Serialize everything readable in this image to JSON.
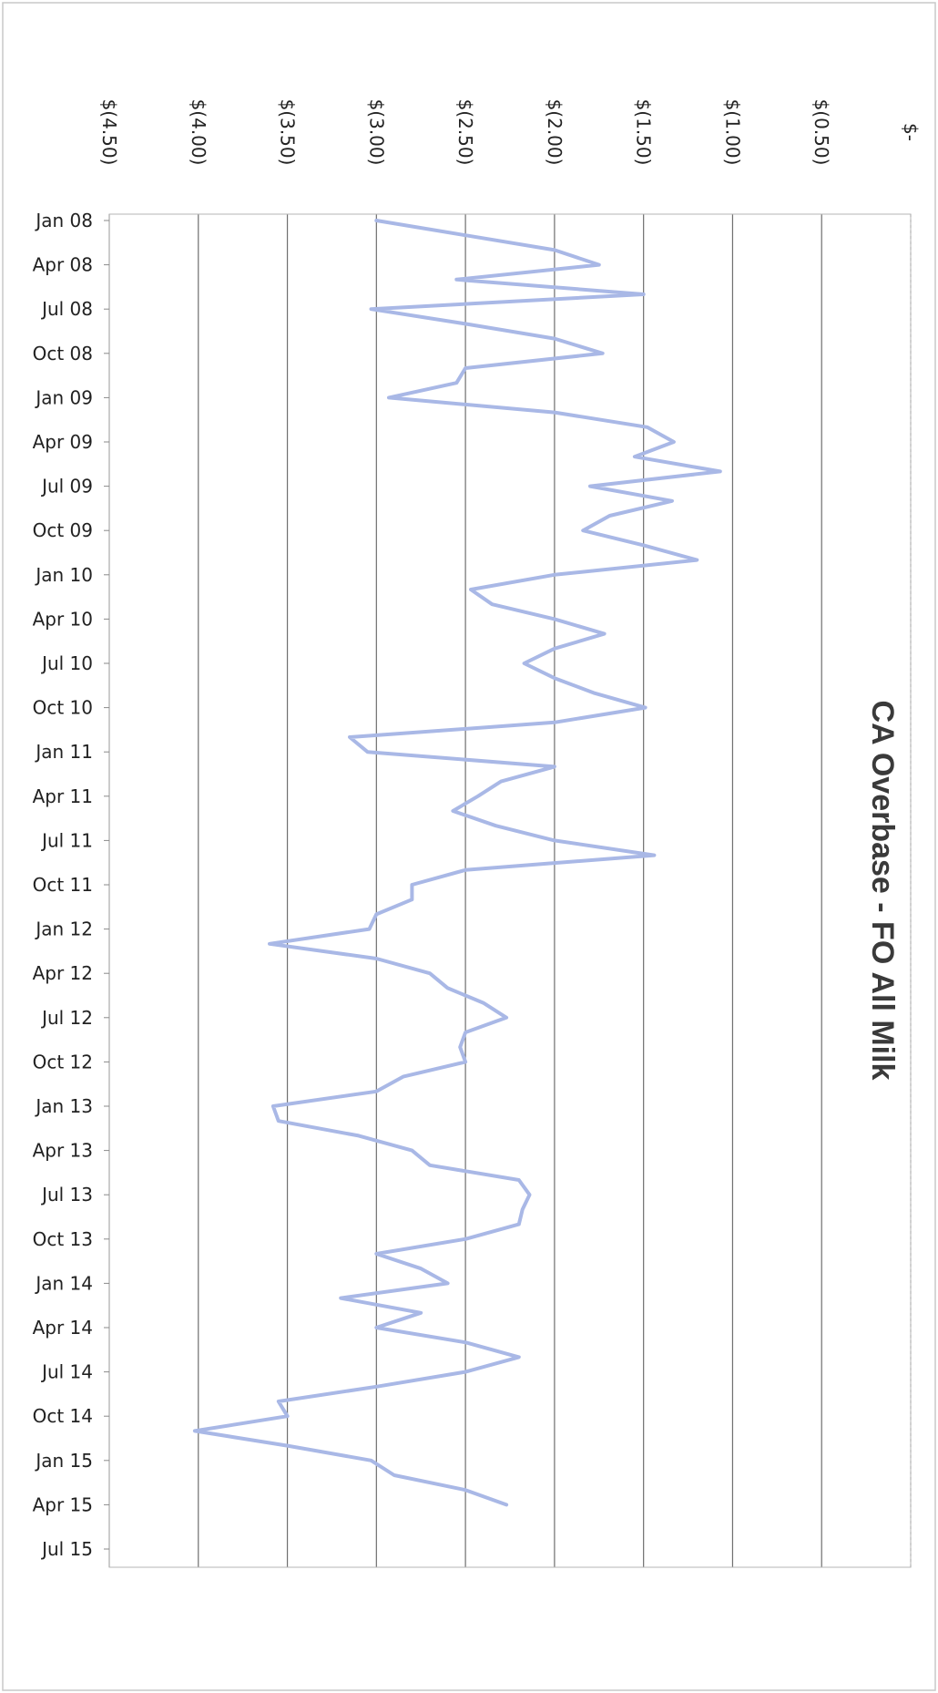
{
  "chart_data": {
    "type": "line",
    "title": "CA Overbase - FO All Milk",
    "xlabel": "",
    "ylabel": "",
    "orientation": "rotated-90-clockwise",
    "ylim": [
      -4.5,
      0
    ],
    "y_ticks": [
      -4.5,
      -4.0,
      -3.5,
      -3.0,
      -2.5,
      -2.0,
      -1.5,
      -1.0,
      -0.5,
      0
    ],
    "y_tick_labels": [
      "$(4.50)",
      "$(4.00)",
      "$(3.50)",
      "$(3.00)",
      "$(2.50)",
      "$(2.00)",
      "$(1.50)",
      "$(1.00)",
      "$(0.50)",
      "$-"
    ],
    "x_tick_labels": [
      "Jan 08",
      "Apr 08",
      "Jul 08",
      "Oct 08",
      "Jan 09",
      "Apr 09",
      "Jul 09",
      "Oct 09",
      "Jan 10",
      "Apr 10",
      "Jul 10",
      "Oct 10",
      "Jan 11",
      "Apr 11",
      "Jul 11",
      "Oct 11",
      "Jan 12",
      "Apr 12",
      "Jul 12",
      "Oct 12",
      "Jan 13",
      "Apr 13",
      "Jul 13",
      "Oct 13",
      "Jan 14",
      "Apr 14",
      "Jul 14",
      "Oct 14",
      "Jan 15",
      "Apr 15",
      "Jul 15"
    ],
    "x_start": "Jan 08",
    "grid": true,
    "legend": "none",
    "series": [
      {
        "color": "#a9b8e6",
        "values": [
          -3.0,
          -2.5,
          -2.0,
          -1.75,
          -2.55,
          -1.5,
          -3.03,
          -2.5,
          -2.0,
          -1.73,
          -2.5,
          -2.55,
          -2.93,
          -2.0,
          -1.48,
          -1.33,
          -1.55,
          -1.07,
          -1.8,
          -1.34,
          -1.69,
          -1.84,
          -1.5,
          -1.2,
          -2.0,
          -2.47,
          -2.35,
          -2.0,
          -1.72,
          -2.0,
          -2.17,
          -2.0,
          -1.78,
          -1.49,
          -2.0,
          -3.15,
          -3.05,
          -2.0,
          -2.3,
          -2.43,
          -2.57,
          -2.33,
          -2.0,
          -1.44,
          -2.5,
          -2.8,
          -2.8,
          -3.0,
          -3.04,
          -3.6,
          -3.0,
          -2.7,
          -2.6,
          -2.4,
          -2.27,
          -2.5,
          -2.53,
          -2.5,
          -2.85,
          -3.0,
          -3.58,
          -3.55,
          -3.1,
          -2.8,
          -2.7,
          -2.2,
          -2.14,
          -2.18,
          -2.2,
          -2.5,
          -3.0,
          -2.75,
          -2.6,
          -3.2,
          -2.75,
          -3.0,
          -2.5,
          -2.2,
          -2.5,
          -3.0,
          -3.55,
          -3.5,
          -4.02,
          -3.5,
          -3.03,
          -2.9,
          -2.5,
          -2.27
        ]
      }
    ]
  }
}
